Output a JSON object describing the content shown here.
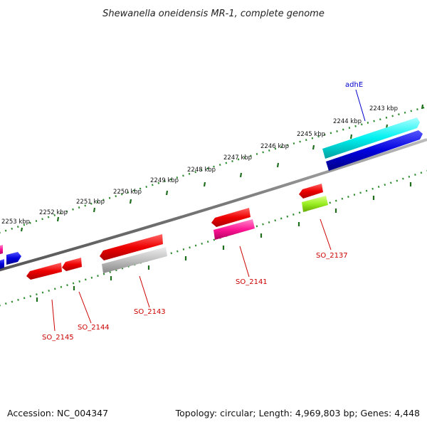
{
  "title": "Shewanella oneidensis MR-1, complete genome",
  "footer": {
    "accession": "Accession: NC_004347",
    "summary": "Topology: circular; Length: 4,969,803 bp; Genes: 4,448"
  },
  "ruler": {
    "ticks": [
      "2253 kbp",
      "2252 kbp",
      "2251 kbp",
      "2250 kbp",
      "2249 kbp",
      "2248 kbp",
      "2247 kbp",
      "2246 kbp",
      "2245 kbp",
      "2244 kbp",
      "2243 kbp"
    ]
  },
  "gene_labels": {
    "adhE": "adhE",
    "SO_2137": "SO_2137",
    "SO_2141": "SO_2141",
    "SO_2143": "SO_2143",
    "SO_2144": "SO_2144",
    "SO_2145": "SO_2145"
  },
  "colors": {
    "backbone": "#8a8a8a",
    "forward_label": "#0000cc",
    "reverse_label": "#cc0000",
    "tick_minor": "#2e8b2e",
    "tick_major": "#1e6e1e",
    "cyan": "#00ffff",
    "blue": "#0000dd",
    "red": "#ee0000",
    "magenta": "#ff1493",
    "gray": "#c0c0c0",
    "lime": "#99ee22"
  }
}
